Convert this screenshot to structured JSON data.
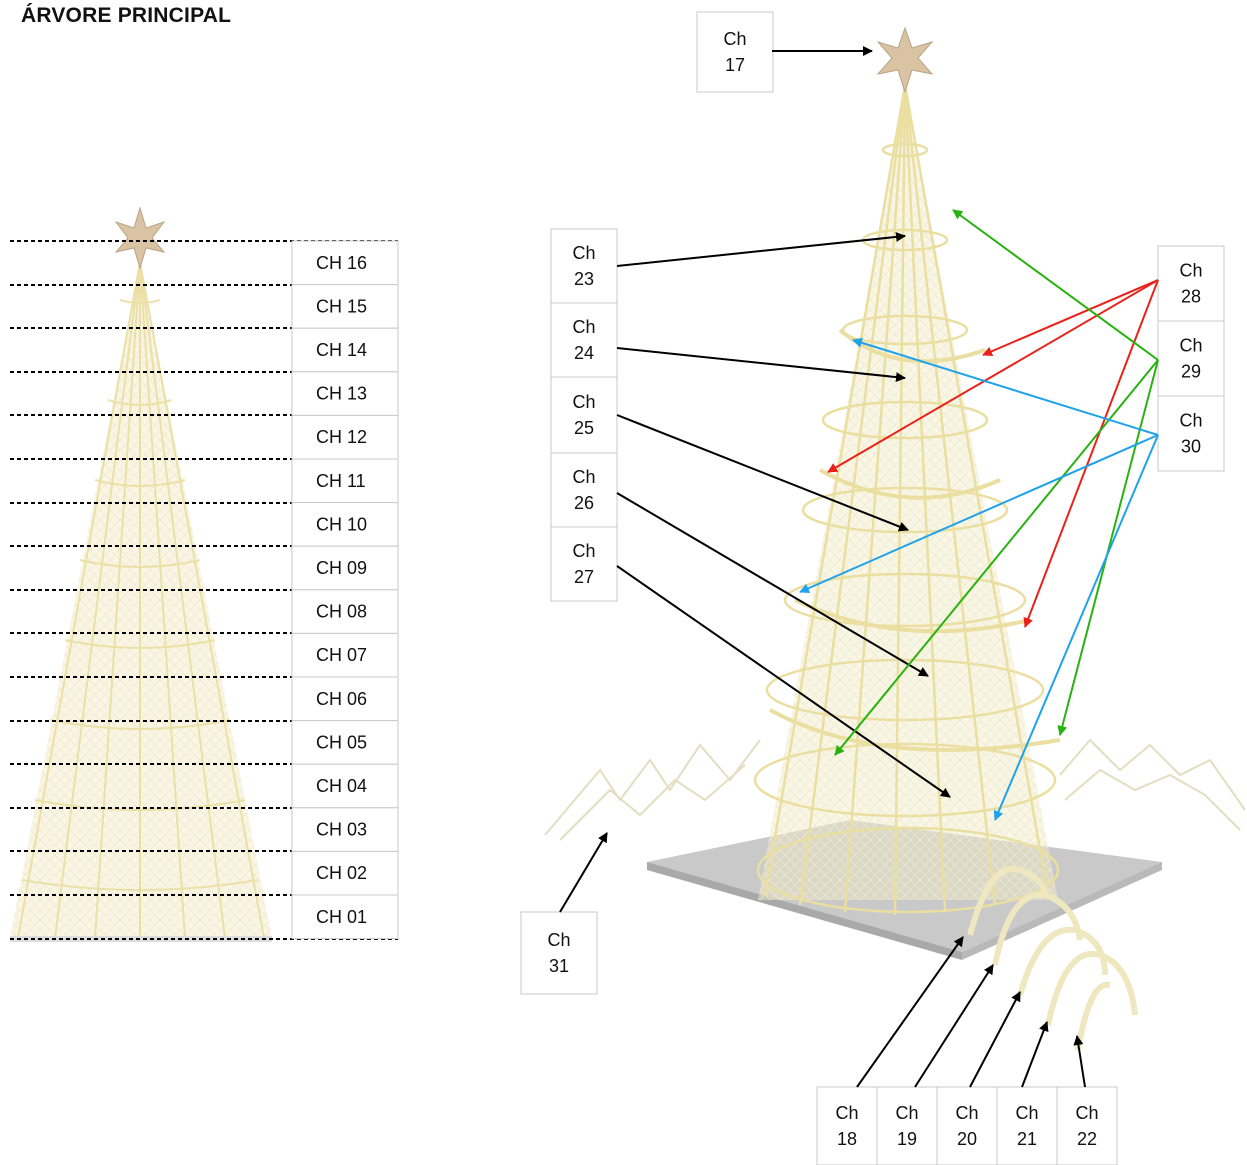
{
  "title": "ÁRVORE PRINCIPAL",
  "left_channels": [
    "CH 16",
    "CH 15",
    "CH 14",
    "CH 13",
    "CH 12",
    "CH 11",
    "CH 10",
    "CH 09",
    "CH 08",
    "CH 07",
    "CH 06",
    "CH 05",
    "CH 04",
    "CH 03",
    "CH 02",
    "CH 01"
  ],
  "right_boxes": {
    "ch17": [
      "Ch",
      "17"
    ],
    "ch23": [
      "Ch",
      "23"
    ],
    "ch24": [
      "Ch",
      "24"
    ],
    "ch25": [
      "Ch",
      "25"
    ],
    "ch26": [
      "Ch",
      "26"
    ],
    "ch27": [
      "Ch",
      "27"
    ],
    "ch28": [
      "Ch",
      "28"
    ],
    "ch29": [
      "Ch",
      "29"
    ],
    "ch30": [
      "Ch",
      "30"
    ],
    "ch31": [
      "Ch",
      "31"
    ],
    "ch18": [
      "Ch",
      "18"
    ],
    "ch19": [
      "Ch",
      "19"
    ],
    "ch20": [
      "Ch",
      "20"
    ],
    "ch21": [
      "Ch",
      "21"
    ],
    "ch22": [
      "Ch",
      "22"
    ]
  },
  "colors": {
    "arrow_black": "#000000",
    "arrow_red": "#e8221b",
    "arrow_green": "#28b20f",
    "arrow_blue": "#1fa2ea",
    "tree_frame": "#efe3a6",
    "tree_star": "#d9c3a3",
    "base_plate": "#c9c9c9"
  }
}
